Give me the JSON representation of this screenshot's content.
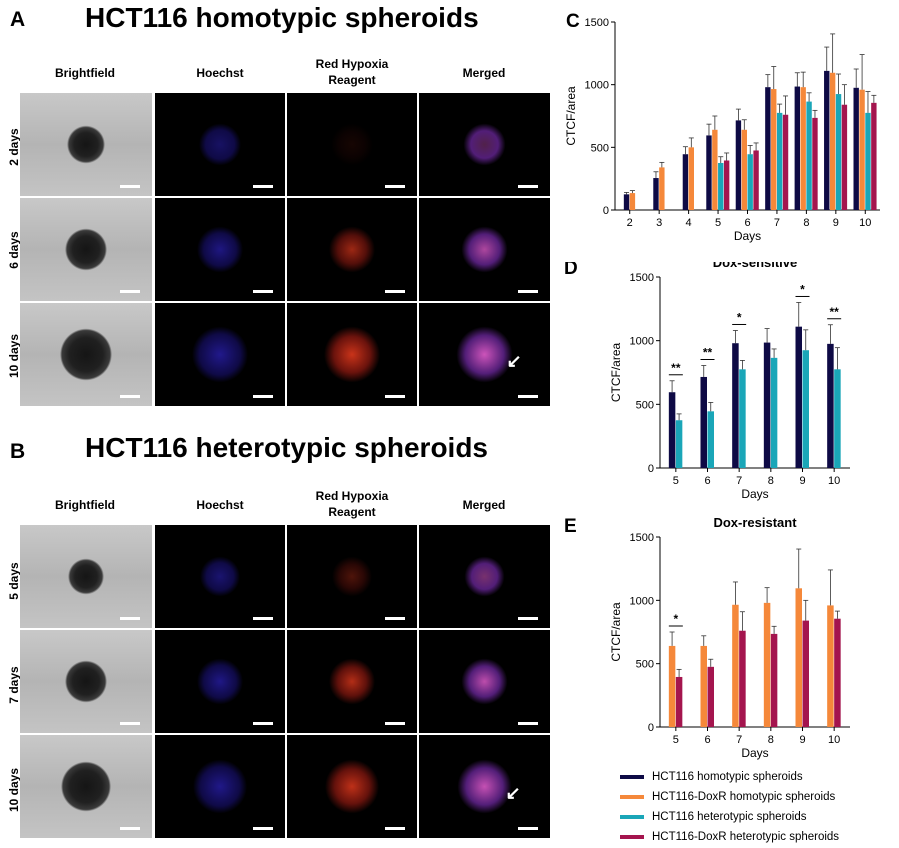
{
  "panel_a": {
    "letter": "A",
    "title": "HCT116 homotypic spheroids",
    "columns": [
      "Brightfield",
      "Hoechst",
      "Red Hypoxia\nReagent",
      "Merged"
    ],
    "rows": [
      "2 days",
      "6 days",
      "10 days"
    ]
  },
  "panel_b": {
    "letter": "B",
    "title": "HCT116 heterotypic spheroids",
    "columns": [
      "Brightfield",
      "Hoechst",
      "Red Hypoxia\nReagent",
      "Merged"
    ],
    "rows": [
      "5 days",
      "7 days",
      "10 days"
    ]
  },
  "colors": {
    "homotypic": "#0e0a45",
    "doxr_homotypic": "#f5883a",
    "heterotypic": "#1aa6b8",
    "doxr_heterotypic": "#a4154e"
  },
  "legend": [
    {
      "label": "HCT116 homotypic spheroids",
      "color": "#0e0a45"
    },
    {
      "label": "HCT116-DoxR homotypic spheroids",
      "color": "#f5883a"
    },
    {
      "label": "HCT116 heterotypic spheroids",
      "color": "#1aa6b8"
    },
    {
      "label": "HCT116-DoxR heterotypic spheroids",
      "color": "#a4154e"
    }
  ],
  "chart_data": [
    {
      "panel": "C",
      "type": "bar",
      "title": "",
      "xlabel": "Days",
      "ylabel": "CTCF/area",
      "ylim": [
        0,
        1500
      ],
      "yticks": [
        0,
        500,
        1000,
        1500
      ],
      "categories": [
        "2",
        "3",
        "4",
        "5",
        "6",
        "7",
        "8",
        "9",
        "10"
      ],
      "series": [
        {
          "name": "HCT116 homotypic spheroids",
          "color": "#0e0a45",
          "values": [
            125,
            255,
            445,
            595,
            715,
            980,
            985,
            1110,
            975
          ],
          "errors": [
            15,
            50,
            60,
            90,
            90,
            100,
            110,
            190,
            150
          ]
        },
        {
          "name": "HCT116-DoxR homotypic spheroids",
          "color": "#f5883a",
          "values": [
            135,
            340,
            500,
            640,
            640,
            965,
            980,
            1095,
            960
          ],
          "errors": [
            20,
            40,
            75,
            110,
            80,
            180,
            120,
            310,
            280
          ]
        },
        {
          "name": "HCT116 heterotypic spheroids",
          "color": "#1aa6b8",
          "values": [
            null,
            null,
            null,
            375,
            445,
            775,
            865,
            925,
            775
          ],
          "errors": [
            null,
            null,
            null,
            50,
            70,
            70,
            70,
            160,
            170
          ]
        },
        {
          "name": "HCT116-DoxR heterotypic spheroids",
          "color": "#a4154e",
          "values": [
            null,
            null,
            null,
            395,
            475,
            760,
            735,
            840,
            855
          ],
          "errors": [
            null,
            null,
            null,
            60,
            60,
            150,
            60,
            160,
            60
          ]
        }
      ]
    },
    {
      "panel": "D",
      "type": "bar",
      "title": "Dox-sensitive",
      "xlabel": "Days",
      "ylabel": "CTCF/area",
      "ylim": [
        0,
        1500
      ],
      "yticks": [
        0,
        500,
        1000,
        1500
      ],
      "categories": [
        "5",
        "6",
        "7",
        "8",
        "9",
        "10"
      ],
      "series": [
        {
          "name": "HCT116 homotypic spheroids",
          "color": "#0e0a45",
          "values": [
            595,
            715,
            980,
            985,
            1110,
            975
          ],
          "errors": [
            90,
            90,
            100,
            110,
            190,
            150
          ]
        },
        {
          "name": "HCT116 heterotypic spheroids",
          "color": "#1aa6b8",
          "values": [
            375,
            445,
            775,
            865,
            925,
            775
          ],
          "errors": [
            50,
            70,
            70,
            70,
            160,
            170
          ]
        }
      ],
      "significance": [
        "**",
        "**",
        "*",
        "",
        "*",
        "**"
      ]
    },
    {
      "panel": "E",
      "type": "bar",
      "title": "Dox-resistant",
      "xlabel": "Days",
      "ylabel": "CTCF/area",
      "ylim": [
        0,
        1500
      ],
      "yticks": [
        0,
        500,
        1000,
        1500
      ],
      "categories": [
        "5",
        "6",
        "7",
        "8",
        "9",
        "10"
      ],
      "series": [
        {
          "name": "HCT116-DoxR homotypic spheroids",
          "color": "#f5883a",
          "values": [
            640,
            640,
            965,
            980,
            1095,
            960
          ],
          "errors": [
            110,
            80,
            180,
            120,
            310,
            280
          ]
        },
        {
          "name": "HCT116-DoxR heterotypic spheroids",
          "color": "#a4154e",
          "values": [
            395,
            475,
            760,
            735,
            840,
            855
          ],
          "errors": [
            60,
            60,
            150,
            60,
            160,
            60
          ]
        }
      ],
      "significance": [
        "*",
        "",
        "",
        "",
        "",
        ""
      ]
    }
  ]
}
